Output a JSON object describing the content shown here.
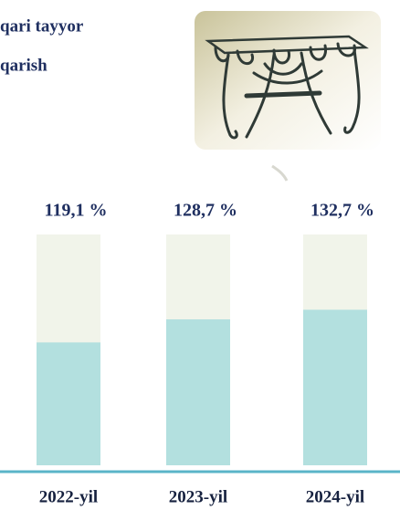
{
  "header": {
    "title_lines": [
      "qari tayyor",
      "qarish"
    ]
  },
  "chart_data": {
    "type": "bar",
    "categories": [
      "2022-yil",
      "2023-yil",
      "2024-yil"
    ],
    "values": [
      119.1,
      128.7,
      132.7
    ],
    "value_labels": [
      "119,1 %",
      "128,7 %",
      "132,7 %"
    ],
    "color": "#b3e0df",
    "track_color": "#f1f4ea",
    "ylim": [
      68,
      164
    ]
  }
}
